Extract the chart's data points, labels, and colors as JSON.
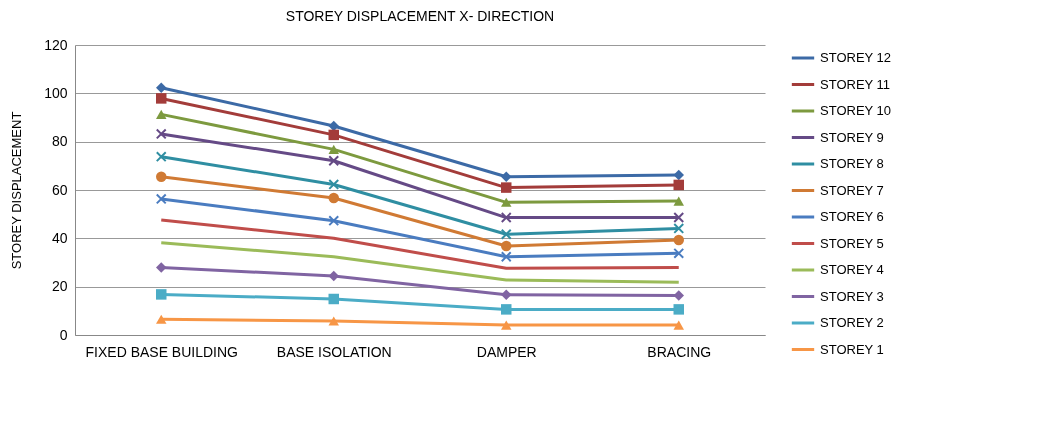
{
  "chart_data": {
    "type": "line",
    "title": "STOREY DISPLACEMENT X- DIRECTION",
    "ylabel": "STOREY DISPLACEMENT",
    "categories": [
      "FIXED BASE BUILDING",
      "BASE ISOLATION",
      "DAMPER",
      "BRACING"
    ],
    "ylim": [
      0,
      120
    ],
    "yticks": [
      0,
      20,
      40,
      60,
      80,
      100,
      120
    ],
    "grid": "y",
    "legend": "right",
    "series": [
      {
        "name": "STOREY 12",
        "color": "#3c6aa6",
        "marker": "diamond",
        "values": [
          102.3,
          86.5,
          65.5,
          66.2
        ]
      },
      {
        "name": "STOREY 11",
        "color": "#a33c3a",
        "marker": "square",
        "values": [
          97.9,
          82.8,
          61,
          62.1
        ]
      },
      {
        "name": "STOREY 10",
        "color": "#7d9a3f",
        "marker": "triangle",
        "values": [
          91.3,
          76.8,
          54.9,
          55.4
        ]
      },
      {
        "name": "STOREY 9",
        "color": "#654a86",
        "marker": "cross",
        "values": [
          83.2,
          72.1,
          48.6,
          48.6
        ]
      },
      {
        "name": "STOREY 8",
        "color": "#2f8ea2",
        "marker": "cross",
        "values": [
          73.8,
          62.3,
          41.7,
          44.1
        ]
      },
      {
        "name": "STOREY 7",
        "color": "#d07a34",
        "marker": "circle",
        "values": [
          65.5,
          56.7,
          36.8,
          39.3
        ]
      },
      {
        "name": "STOREY 6",
        "color": "#4a7cc0",
        "marker": "cross",
        "values": [
          56.3,
          47.3,
          32.4,
          33.8
        ]
      },
      {
        "name": "STOREY 5",
        "color": "#c04d4a",
        "marker": "none",
        "values": [
          47.6,
          40,
          27.6,
          27.9
        ]
      },
      {
        "name": "STOREY 4",
        "color": "#9bbb59",
        "marker": "none",
        "values": [
          38.2,
          32.4,
          22.8,
          21.8
        ]
      },
      {
        "name": "STOREY 3",
        "color": "#8064a2",
        "marker": "diamond",
        "values": [
          27.9,
          24.4,
          16.7,
          16.3
        ]
      },
      {
        "name": "STOREY 2",
        "color": "#4bacc6",
        "marker": "square",
        "values": [
          16.8,
          14.9,
          10.6,
          10.6
        ]
      },
      {
        "name": "STOREY 1",
        "color": "#f79646",
        "marker": "triangle",
        "values": [
          6.5,
          5.8,
          4.1,
          4.1
        ]
      }
    ]
  }
}
